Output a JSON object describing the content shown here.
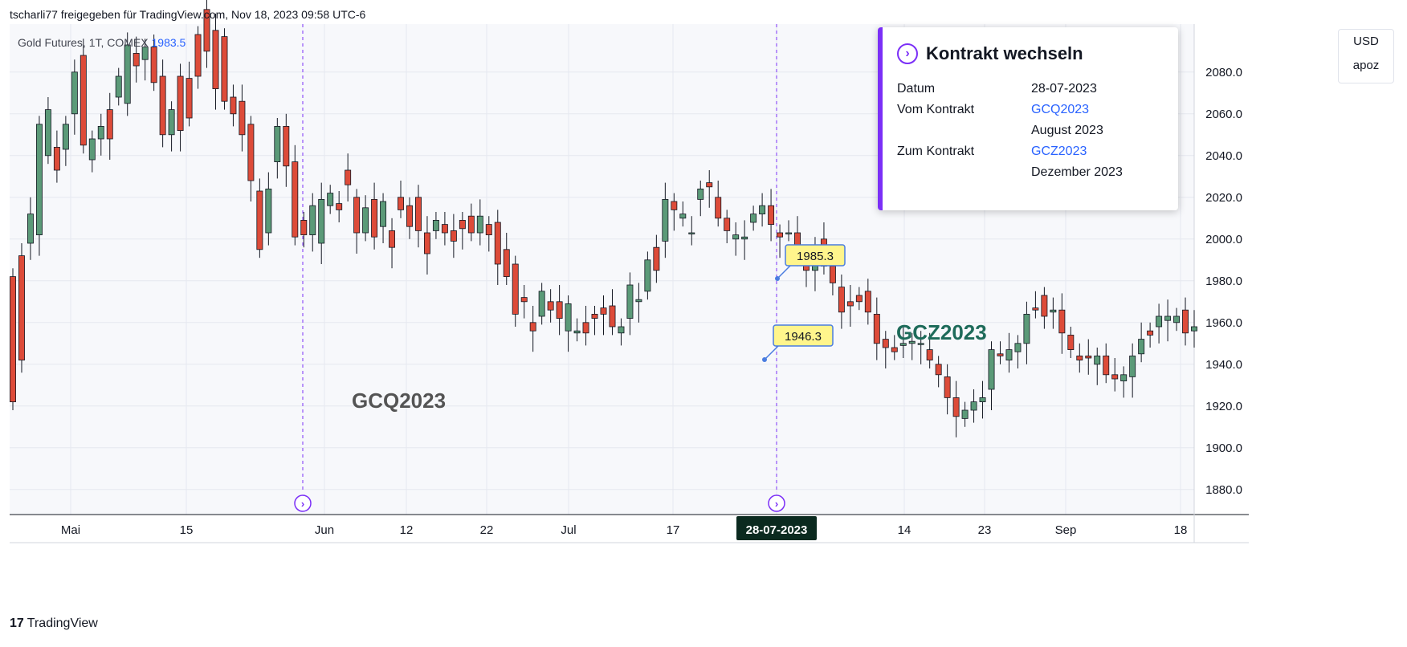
{
  "header": {
    "byline": "tscharli77 freigegeben für TradingView.com, Nov 18, 2023 09:58 UTC-6"
  },
  "symbol": {
    "name": "Gold Futures, 1T, COMEX",
    "price": "1983.5"
  },
  "unit_box": {
    "currency": "USD",
    "mode": "apoz"
  },
  "popup": {
    "title": "Kontrakt wechseln",
    "rows": [
      {
        "label": "Datum",
        "value": "28-07-2023"
      },
      {
        "label": "Vom Kontrakt",
        "value": "GCQ2023"
      },
      {
        "label": "",
        "value": "August 2023"
      },
      {
        "label": "Zum Kontrakt",
        "value": "GCZ2023"
      },
      {
        "label": "",
        "value": "Dezember 2023"
      }
    ]
  },
  "footer": {
    "brand": "TradingView"
  },
  "colors": {
    "up": "#5b9a78",
    "down": "#dd4b39",
    "old_up": "#ffffff",
    "old_down": "#5e5b66",
    "accent": "#7b2ff7",
    "label_bg": "#fff58c",
    "gcz_label": "#1e6b5a",
    "gcq_label": "#545454",
    "grid": "#e6e8f0"
  },
  "chart_data": {
    "type": "candlestick",
    "y_axis": {
      "ticks": [
        1880.0,
        1900.0,
        1920.0,
        1940.0,
        1960.0,
        1980.0,
        2000.0,
        2020.0,
        2040.0,
        2060.0,
        2080.0
      ],
      "range": [
        1870,
        2100
      ]
    },
    "x_axis": {
      "ticks": [
        "Mai",
        "15",
        "Jun",
        "12",
        "22",
        "Jul",
        "17",
        "28-07-2023",
        "14",
        "23",
        "Sep",
        "18"
      ],
      "highlighted": "28-07-2023"
    },
    "annotations": [
      {
        "text": "GCQ2023",
        "kind": "contract-label"
      },
      {
        "text": "GCZ2023",
        "kind": "contract-label"
      },
      {
        "text": "1985.3",
        "kind": "price-label"
      },
      {
        "text": "1946.3",
        "kind": "price-label"
      }
    ],
    "series": [
      {
        "name": "GCZ2023",
        "candles": [
          [
            1982,
            1922
          ],
          [
            1992,
            1942
          ],
          [
            1998,
            2012
          ],
          [
            2002,
            2055
          ],
          [
            2040,
            2062
          ],
          [
            2044,
            2033
          ],
          [
            2043,
            2055
          ],
          [
            2060,
            2080
          ],
          [
            2088,
            2045
          ],
          [
            2038,
            2048
          ],
          [
            2048,
            2054
          ],
          [
            2062,
            2048
          ],
          [
            2068,
            2078
          ],
          [
            2065,
            2093
          ],
          [
            2089,
            2083
          ],
          [
            2086,
            2092
          ],
          [
            2092,
            2075
          ],
          [
            2078,
            2050
          ],
          [
            2050,
            2062
          ],
          [
            2078,
            2052
          ],
          [
            2077,
            2058
          ],
          [
            2098,
            2078
          ],
          [
            2110,
            2090
          ],
          [
            2100,
            2072
          ],
          [
            2097,
            2066
          ],
          [
            2068,
            2060
          ],
          [
            2066,
            2050
          ],
          [
            2055,
            2028
          ],
          [
            2023,
            1995
          ],
          [
            2003,
            2024
          ],
          [
            2037,
            2054
          ],
          [
            2054,
            2035
          ],
          [
            2037,
            2001
          ],
          [
            2009,
            2002
          ],
          [
            2002,
            2016
          ],
          [
            1998,
            2019
          ],
          [
            2016,
            2022
          ],
          [
            2017,
            2014
          ],
          [
            2033,
            2026
          ],
          [
            2020,
            2003
          ],
          [
            2003,
            2015
          ],
          [
            2019,
            2001
          ],
          [
            2006,
            2018
          ],
          [
            2004,
            1996
          ],
          [
            2020,
            2014
          ],
          [
            2016,
            2006
          ],
          [
            2020,
            2004
          ],
          [
            2003,
            1993
          ],
          [
            2004,
            2009
          ],
          [
            2007,
            2003
          ],
          [
            2004,
            1999
          ],
          [
            2009,
            2005
          ],
          [
            2011,
            2003
          ],
          [
            2003,
            2011
          ],
          [
            2007,
            2002
          ],
          [
            2008,
            1988
          ],
          [
            1995,
            1982
          ],
          [
            1988,
            1964
          ],
          [
            1972,
            1970
          ],
          [
            1960,
            1956
          ],
          [
            1963,
            1975
          ],
          [
            1970,
            1966
          ],
          [
            1970,
            1962
          ],
          [
            1956,
            1969
          ],
          [
            1955,
            1956
          ],
          [
            1960,
            1955
          ],
          [
            1964,
            1962
          ],
          [
            1967,
            1964
          ],
          [
            1968,
            1958
          ],
          [
            1955,
            1958
          ],
          [
            1962,
            1978
          ],
          [
            1970,
            1971
          ],
          [
            1975,
            1990
          ],
          [
            1996,
            1985
          ],
          [
            1999,
            2019
          ],
          [
            2018,
            2014
          ],
          [
            2010,
            2012
          ],
          [
            2003,
            2003
          ],
          [
            2019,
            2024
          ],
          [
            2027,
            2025
          ],
          [
            2020,
            2010
          ],
          [
            2010,
            2004
          ],
          [
            2000,
            2002
          ],
          [
            2000,
            2001
          ],
          [
            2008,
            2012
          ],
          [
            2012,
            2016
          ],
          [
            2016,
            2007
          ],
          [
            2003,
            2001
          ],
          [
            2003,
            2003
          ],
          [
            2003,
            1993
          ],
          [
            1990,
            1985
          ],
          [
            1985,
            1995
          ],
          [
            2000,
            1987
          ],
          [
            1987,
            1979
          ],
          [
            1977,
            1965
          ],
          [
            1970,
            1968
          ],
          [
            1973,
            1970
          ],
          [
            1975,
            1965
          ],
          [
            1964,
            1950
          ],
          [
            1952,
            1948
          ],
          [
            1948,
            1946
          ],
          [
            1949,
            1950
          ],
          [
            1950,
            1951
          ],
          [
            1950,
            1950
          ],
          [
            1947,
            1942
          ],
          [
            1940,
            1935
          ],
          [
            1934,
            1924
          ],
          [
            1924,
            1915
          ],
          [
            1914,
            1918
          ],
          [
            1918,
            1922
          ],
          [
            1922,
            1924
          ],
          [
            1928,
            1947
          ],
          [
            1945,
            1944
          ],
          [
            1942,
            1947
          ],
          [
            1946,
            1950
          ],
          [
            1950,
            1964
          ],
          [
            1967,
            1966
          ],
          [
            1973,
            1963
          ],
          [
            1965,
            1966
          ],
          [
            1966,
            1955
          ],
          [
            1954,
            1947
          ],
          [
            1944,
            1942
          ],
          [
            1944,
            1943
          ],
          [
            1940,
            1944
          ],
          [
            1944,
            1935
          ],
          [
            1935,
            1933
          ],
          [
            1932,
            1935
          ],
          [
            1934,
            1944
          ],
          [
            1945,
            1952
          ],
          [
            1956,
            1954
          ],
          [
            1958,
            1963
          ],
          [
            1961,
            1963
          ],
          [
            1960,
            1963
          ],
          [
            1966,
            1955
          ],
          [
            1956,
            1958
          ]
        ]
      }
    ]
  }
}
